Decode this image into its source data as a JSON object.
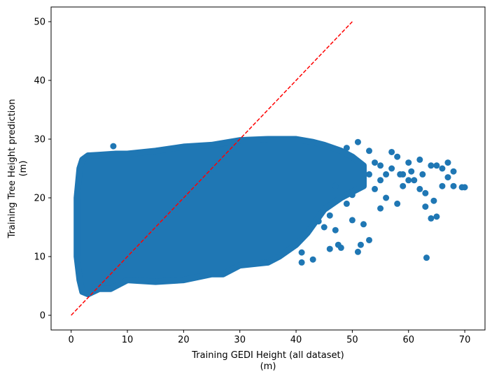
{
  "chart_data": {
    "type": "scatter",
    "title": "",
    "xlabel": "Training GEDI Height (all dataset)",
    "xlabel_unit": "(m)",
    "ylabel": "Training Tree Height prediction",
    "ylabel_unit": "(m)",
    "xlim": [
      -3.57,
      73.6
    ],
    "ylim": [
      -2.5,
      52.5
    ],
    "xticks": [
      0,
      10,
      20,
      30,
      40,
      50,
      60,
      70
    ],
    "yticks": [
      0,
      10,
      20,
      30,
      40,
      50
    ],
    "grid": false,
    "point_color": "#1f77b4",
    "reference_line": {
      "style": "dashed",
      "color": "#ff0000",
      "x": [
        0,
        50
      ],
      "y": [
        0,
        50
      ]
    },
    "dense_region_envelope": [
      [
        1.5,
        25
      ],
      [
        2,
        26.5
      ],
      [
        3,
        27.2
      ],
      [
        5,
        27.3
      ],
      [
        8,
        27.5
      ],
      [
        10,
        27.5
      ],
      [
        15,
        28
      ],
      [
        20,
        28.7
      ],
      [
        25,
        29
      ],
      [
        30,
        29.8
      ],
      [
        35,
        30
      ],
      [
        40,
        30
      ],
      [
        43,
        29.5
      ],
      [
        45,
        29
      ],
      [
        48,
        28
      ],
      [
        50,
        27
      ],
      [
        52,
        25.5
      ],
      [
        52,
        22
      ],
      [
        48,
        20
      ],
      [
        45,
        18
      ],
      [
        42,
        14
      ],
      [
        40,
        12
      ],
      [
        37,
        10
      ],
      [
        35,
        9
      ],
      [
        30,
        8.5
      ],
      [
        27,
        7
      ],
      [
        25,
        7
      ],
      [
        20,
        6
      ],
      [
        15,
        5.7
      ],
      [
        10,
        6
      ],
      [
        7,
        4.5
      ],
      [
        5,
        4.5
      ],
      [
        3,
        3.6
      ],
      [
        2,
        4
      ],
      [
        1.5,
        6
      ],
      [
        1,
        10
      ],
      [
        1,
        20
      ]
    ],
    "points": [
      [
        63.2,
        9.8
      ],
      [
        69.5,
        21.8
      ],
      [
        70,
        21.8
      ],
      [
        68,
        24.5
      ],
      [
        67,
        26
      ],
      [
        66,
        25
      ],
      [
        65,
        25.5
      ],
      [
        64,
        25.5
      ],
      [
        64.5,
        19.5
      ],
      [
        65,
        16.8
      ],
      [
        64,
        16.5
      ],
      [
        63,
        18.5
      ],
      [
        62,
        21.5
      ],
      [
        62,
        26.5
      ],
      [
        60,
        26
      ],
      [
        59,
        24
      ],
      [
        57,
        27.8
      ],
      [
        58,
        19
      ],
      [
        55,
        18.2
      ],
      [
        56,
        20
      ],
      [
        53,
        12.8
      ],
      [
        52,
        15.5
      ],
      [
        51,
        10.8
      ],
      [
        51.5,
        12
      ],
      [
        50,
        16.2
      ],
      [
        48,
        11.5
      ],
      [
        47.5,
        12
      ],
      [
        47,
        14.5
      ],
      [
        46,
        11.3
      ],
      [
        45,
        15
      ],
      [
        43,
        9.5
      ],
      [
        41,
        10.7
      ],
      [
        41,
        9
      ],
      [
        44,
        16
      ],
      [
        58,
        27
      ],
      [
        60.5,
        24.5
      ],
      [
        61,
        23
      ],
      [
        55,
        23
      ],
      [
        56,
        24
      ],
      [
        54,
        21.5
      ],
      [
        53,
        24
      ],
      [
        62.5,
        24
      ],
      [
        66,
        22
      ],
      [
        67,
        23.5
      ],
      [
        68,
        22
      ],
      [
        59,
        22
      ],
      [
        63,
        20.8
      ],
      [
        54,
        26
      ],
      [
        53,
        28
      ],
      [
        51,
        29.5
      ],
      [
        49,
        28.5
      ],
      [
        57,
        25
      ],
      [
        55,
        25.5
      ],
      [
        58.5,
        24
      ],
      [
        60,
        23
      ],
      [
        7.5,
        28.8
      ],
      [
        49,
        19
      ],
      [
        50,
        20.5
      ],
      [
        46,
        17
      ],
      [
        47,
        22
      ]
    ]
  }
}
